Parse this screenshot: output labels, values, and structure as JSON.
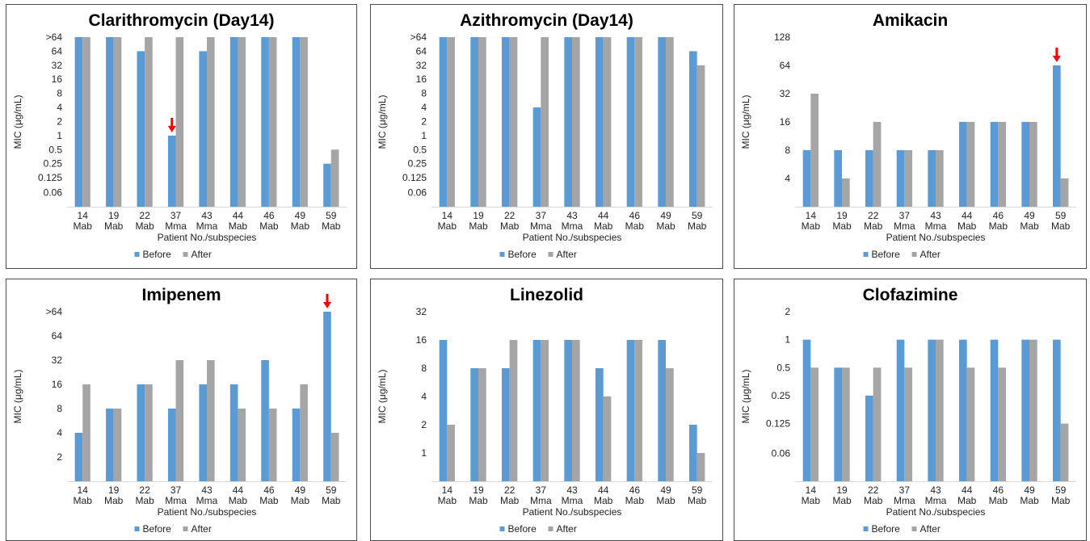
{
  "colors": {
    "before": "#5b9bd5",
    "after": "#a5a5a5",
    "arrow": "#ff0000"
  },
  "chart_data": [
    {
      "type": "bar",
      "title": "Clarithromycin (Day14)",
      "ylabel": "MIC (μg/mL)",
      "xlabel": "Patient No./subspecies",
      "scale": "log2",
      "categories": [
        "14 Mab",
        "19 Mab",
        "22 Mab",
        "37 Mma",
        "43 Mma",
        "44 Mab",
        "46 Mab",
        "49 Mab",
        "59 Mab"
      ],
      "yticks": [
        0.06,
        0.125,
        0.25,
        0.5,
        1,
        2,
        4,
        8,
        16,
        32,
        64,
        128
      ],
      "ytick_labels": [
        "0.06",
        "0.125",
        "0.25",
        "0.5",
        "1",
        "2",
        "4",
        "8",
        "16",
        "32",
        "64",
        ">64"
      ],
      "ylim": [
        0.03,
        128
      ],
      "series": [
        {
          "name": "Before",
          "values": [
            128,
            128,
            64,
            1,
            64,
            128,
            128,
            128,
            0.25
          ]
        },
        {
          "name": "After",
          "values": [
            128,
            128,
            128,
            128,
            128,
            128,
            128,
            128,
            0.5
          ]
        }
      ],
      "arrow_category": "37 Mma",
      "legend": "bottom-center"
    },
    {
      "type": "bar",
      "title": "Azithromycin (Day14)",
      "ylabel": "MIC (μg/mL)",
      "xlabel": "Patient No./subspecies",
      "scale": "log2",
      "categories": [
        "14 Mab",
        "19 Mab",
        "22 Mab",
        "37 Mma",
        "43 Mma",
        "44 Mab",
        "46 Mab",
        "49 Mab",
        "59 Mab"
      ],
      "yticks": [
        0.06,
        0.125,
        0.25,
        0.5,
        1,
        2,
        4,
        8,
        16,
        32,
        64,
        128
      ],
      "ytick_labels": [
        "0.06",
        "0.125",
        "0.25",
        "0.5",
        "1",
        "2",
        "4",
        "8",
        "16",
        "32",
        "64",
        ">64"
      ],
      "ylim": [
        0.03,
        128
      ],
      "series": [
        {
          "name": "Before",
          "values": [
            128,
            128,
            128,
            4,
            128,
            128,
            128,
            128,
            64
          ]
        },
        {
          "name": "After",
          "values": [
            128,
            128,
            128,
            128,
            128,
            128,
            128,
            128,
            32
          ]
        }
      ],
      "arrow_category": null,
      "legend": "bottom-center"
    },
    {
      "type": "bar",
      "title": "Amikacin",
      "ylabel": "MIC (μg/mL)",
      "xlabel": "Patient No./subspecies",
      "scale": "log2",
      "categories": [
        "14 Mab",
        "19 Mab",
        "22 Mab",
        "37 Mma",
        "43 Mma",
        "44 Mab",
        "46 Mab",
        "49 Mab",
        "59 Mab"
      ],
      "yticks": [
        4,
        8,
        16,
        32,
        64,
        128
      ],
      "ytick_labels": [
        "4",
        "8",
        "16",
        "32",
        "64",
        "128"
      ],
      "ylim": [
        2,
        128
      ],
      "series": [
        {
          "name": "Before",
          "values": [
            8,
            8,
            8,
            8,
            8,
            16,
            16,
            16,
            64
          ]
        },
        {
          "name": "After",
          "values": [
            32,
            4,
            16,
            8,
            8,
            16,
            16,
            16,
            4
          ]
        }
      ],
      "arrow_category": "59 Mab",
      "legend": "bottom-center"
    },
    {
      "type": "bar",
      "title": "Imipenem",
      "ylabel": "MIC (μg/mL)",
      "xlabel": "Patient No./subspecies",
      "scale": "log2",
      "categories": [
        "14 Mab",
        "19 Mab",
        "22 Mab",
        "37 Mma",
        "43 Mma",
        "44 Mab",
        "46 Mab",
        "49 Mab",
        "59 Mab"
      ],
      "yticks": [
        2,
        4,
        8,
        16,
        32,
        64,
        128
      ],
      "ytick_labels": [
        "2",
        "4",
        "8",
        "16",
        "32",
        "64",
        ">64"
      ],
      "ylim": [
        1,
        128
      ],
      "series": [
        {
          "name": "Before",
          "values": [
            4,
            8,
            16,
            8,
            16,
            16,
            32,
            8,
            128
          ]
        },
        {
          "name": "After",
          "values": [
            16,
            8,
            16,
            32,
            32,
            8,
            8,
            16,
            4
          ]
        }
      ],
      "arrow_category": "59 Mab",
      "legend": "bottom-center"
    },
    {
      "type": "bar",
      "title": "Linezolid",
      "ylabel": "MIC (μg/mL)",
      "xlabel": "Patient No./subspecies",
      "scale": "log2",
      "categories": [
        "14 Mab",
        "19 Mab",
        "22 Mab",
        "37 Mma",
        "43 Mma",
        "44 Mab",
        "46 Mab",
        "49 Mab",
        "59 Mab"
      ],
      "yticks": [
        1,
        2,
        4,
        8,
        16,
        32
      ],
      "ytick_labels": [
        "1",
        "2",
        "4",
        "8",
        "16",
        "32"
      ],
      "ylim": [
        0.5,
        32
      ],
      "series": [
        {
          "name": "Before",
          "values": [
            16,
            8,
            8,
            16,
            16,
            8,
            16,
            16,
            2
          ]
        },
        {
          "name": "After",
          "values": [
            2,
            8,
            16,
            16,
            16,
            4,
            16,
            8,
            1
          ]
        }
      ],
      "arrow_category": null,
      "legend": "bottom-center"
    },
    {
      "type": "bar",
      "title": "Clofazimine",
      "ylabel": "MIC (μg/mL)",
      "xlabel": "Patient No./subspecies",
      "scale": "log2",
      "categories": [
        "14 Mab",
        "19 Mab",
        "22 Mab",
        "37 Mma",
        "43 Mma",
        "44 Mab",
        "46 Mab",
        "49 Mab",
        "59 Mab"
      ],
      "yticks": [
        0.06,
        0.125,
        0.25,
        0.5,
        1,
        2
      ],
      "ytick_labels": [
        "0.06",
        "0.125",
        "0.25",
        "0.5",
        "1",
        "2"
      ],
      "ylim": [
        0.03,
        2
      ],
      "series": [
        {
          "name": "Before",
          "values": [
            1,
            0.5,
            0.25,
            1,
            1,
            1,
            1,
            1,
            1
          ]
        },
        {
          "name": "After",
          "values": [
            0.5,
            0.5,
            0.5,
            0.5,
            1,
            0.5,
            0.5,
            1,
            0.125
          ]
        }
      ],
      "arrow_category": null,
      "legend": "bottom-center"
    }
  ]
}
